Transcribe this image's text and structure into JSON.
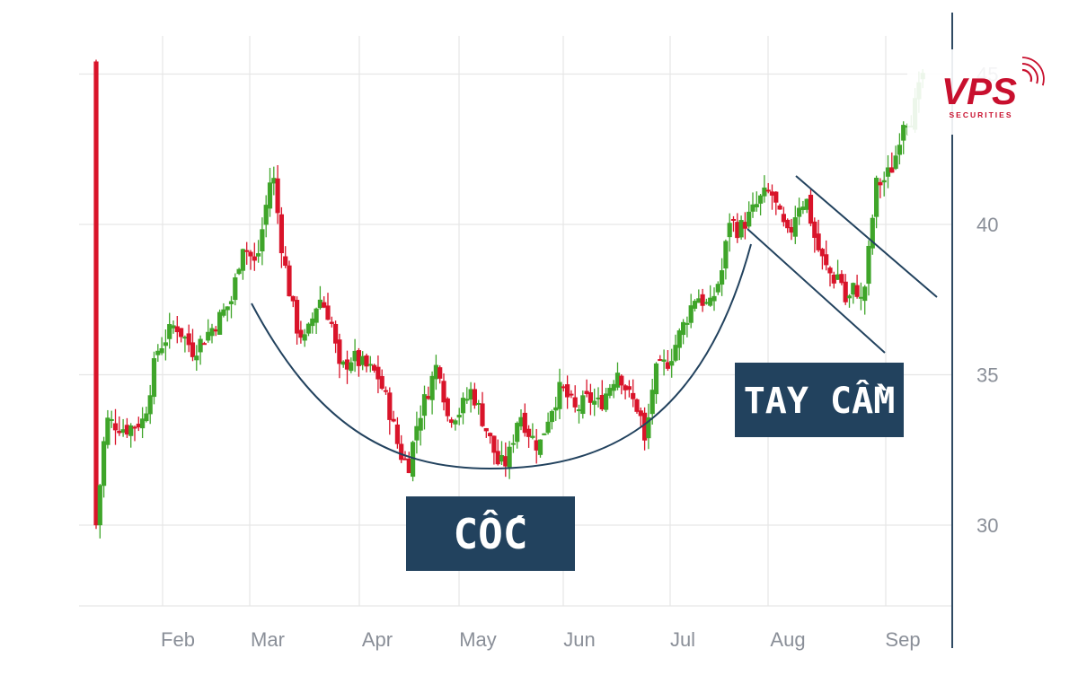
{
  "chart_data": {
    "type": "candlestick",
    "title": "",
    "xlabel": "",
    "ylabel": "",
    "ylim": [
      27.3,
      46.3
    ],
    "grid": true,
    "x_tick_labels": [
      "Feb",
      "Mar",
      "Apr",
      "May",
      "Jun",
      "Jul",
      "Aug",
      "Sep"
    ],
    "y_tick_labels": [
      "30",
      "35",
      "40",
      "45"
    ],
    "y_ticks": [
      30,
      35,
      40,
      45
    ],
    "colors": {
      "up": "#3fa52a",
      "down": "#d9142a",
      "grid": "#e6e6e6",
      "axis": "#2f4a63",
      "annotation": "#22425e"
    },
    "annotations": [
      {
        "name": "cup",
        "text": "CỐC",
        "shape": "arc"
      },
      {
        "name": "handle",
        "text": "TAY CẦM",
        "shape": "parallel-channel"
      }
    ],
    "logo": {
      "text": "VPS",
      "subtext": "SECURITIES",
      "color": "#c8102e"
    }
  }
}
